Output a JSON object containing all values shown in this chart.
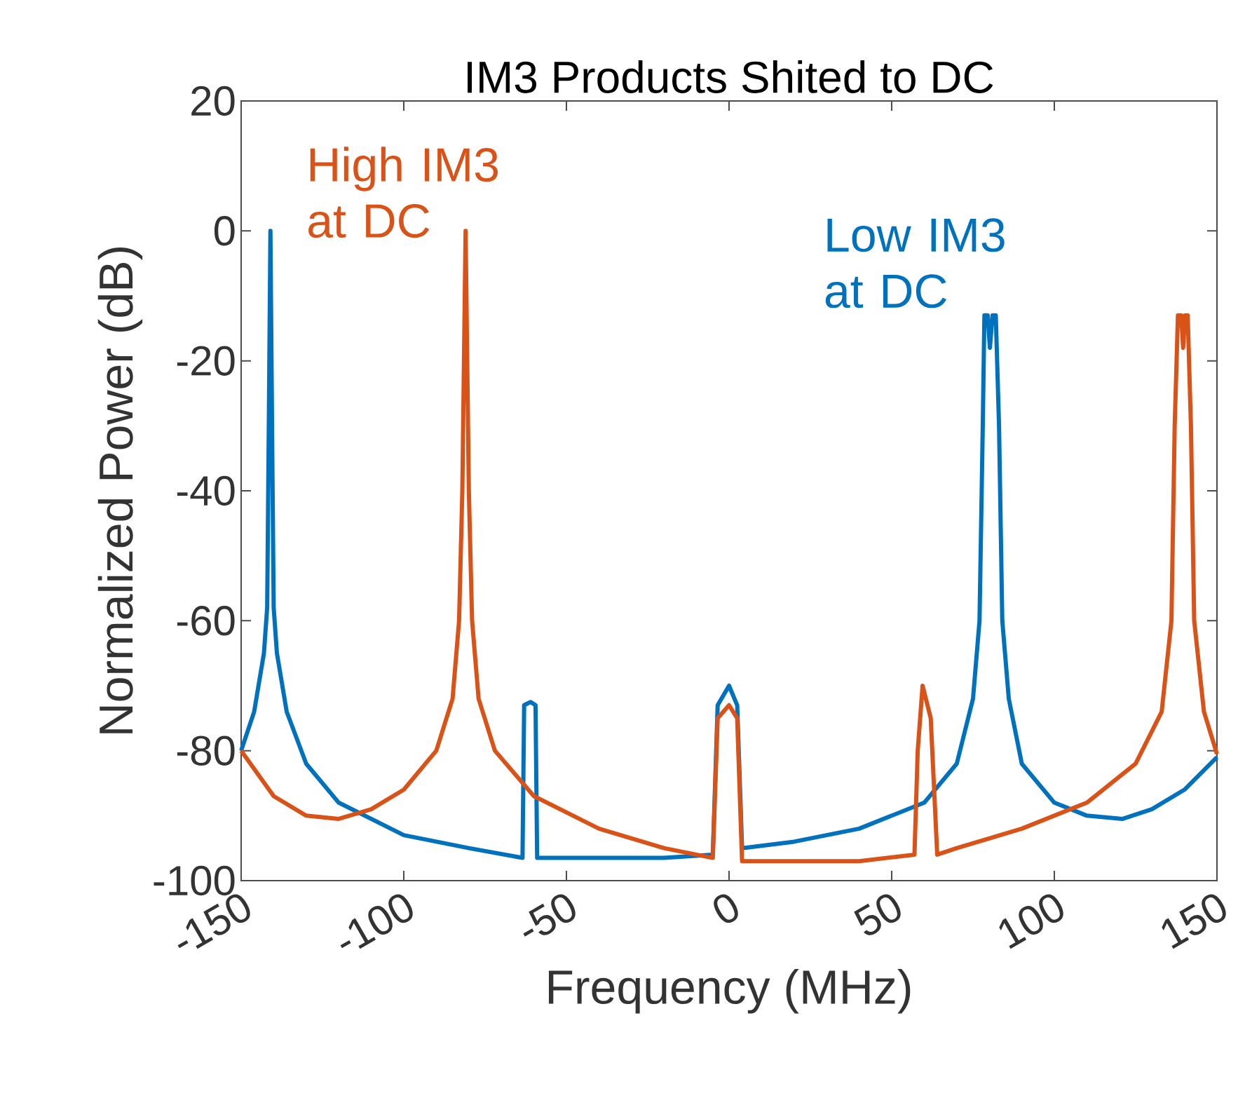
{
  "chart_data": {
    "type": "line",
    "title": "IM3 Products Shited to DC",
    "xlabel": "Frequency (MHz)",
    "ylabel": "Normalized Power (dB)",
    "xlim": [
      -150,
      150
    ],
    "xticks": [
      -150,
      -100,
      -50,
      0,
      50,
      100,
      150
    ],
    "ylim": [
      -100,
      20
    ],
    "yticks": [
      -100,
      -80,
      -60,
      -40,
      -20,
      0,
      20
    ],
    "grid": false,
    "series": [
      {
        "name": "Low IM3 at DC",
        "color": "#0072bd",
        "x": [
          -150,
          -146,
          -143,
          -142,
          -141.5,
          -141,
          -140.5,
          -140,
          -139,
          -136,
          -130,
          -120,
          -100,
          -80,
          -63.5,
          -63,
          -61,
          -59.5,
          -59,
          -40,
          -20,
          -5,
          -3.5,
          0,
          2.5,
          4,
          20,
          40,
          60,
          70,
          75,
          77,
          78,
          78.5,
          79.5,
          80.2,
          81,
          82,
          83,
          84,
          86,
          90,
          100,
          110,
          121,
          130,
          140,
          150
        ],
        "values": [
          -80,
          -74,
          -65,
          -58,
          -30,
          0,
          -30,
          -58,
          -65,
          -74,
          -82,
          -88,
          -93,
          -95,
          -96.5,
          -73,
          -72.5,
          -73,
          -96.5,
          -96.5,
          -96.5,
          -96,
          -73,
          -70,
          -73,
          -95,
          -94,
          -92,
          -88,
          -82,
          -72,
          -60,
          -30,
          -13,
          -13,
          -18,
          -13,
          -13,
          -30,
          -60,
          -72,
          -82,
          -88,
          -90,
          -90.5,
          -89,
          -86,
          -81
        ]
      },
      {
        "name": "High IM3 at DC",
        "color": "#d95319",
        "x": [
          -150,
          -140,
          -130,
          -120,
          -110,
          -100,
          -90,
          -85,
          -83,
          -82,
          -81,
          -80,
          -79,
          -77,
          -72,
          -60,
          -40,
          -20,
          -5,
          -3.5,
          0,
          2.5,
          4,
          20,
          40,
          57,
          58,
          59.5,
          62,
          64,
          70,
          90,
          110,
          125,
          133,
          136,
          137,
          138,
          139,
          139.6,
          140.2,
          141,
          142,
          143,
          146,
          150
        ],
        "values": [
          -80,
          -87,
          -90,
          -90.5,
          -89,
          -86,
          -80,
          -72,
          -60,
          -40,
          0,
          -40,
          -60,
          -72,
          -80,
          -87,
          -92,
          -95,
          -96.5,
          -75,
          -73,
          -75,
          -97,
          -97,
          -97,
          -96,
          -80,
          -70,
          -75,
          -96,
          -95,
          -92,
          -88,
          -82,
          -74,
          -60,
          -30,
          -13,
          -13,
          -18,
          -13,
          -13,
          -30,
          -60,
          -74,
          -80.5
        ]
      }
    ]
  }
}
